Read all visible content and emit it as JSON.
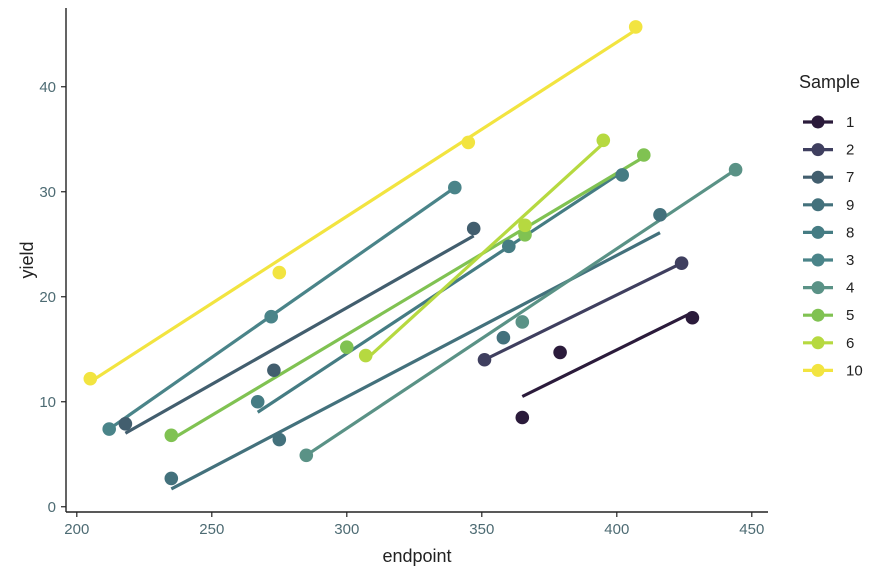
{
  "chart_data": {
    "type": "scatter",
    "xlabel": "endpoint",
    "ylabel": "yield",
    "xlim": [
      196,
      456
    ],
    "ylim": [
      -0.5,
      47.5
    ],
    "x_ticks": [
      200,
      250,
      300,
      350,
      400,
      450
    ],
    "y_ticks": [
      0,
      10,
      20,
      30,
      40
    ],
    "grid": false,
    "legend": {
      "title": "Sample",
      "position": "right"
    },
    "series": [
      {
        "name": "1",
        "color": "#2b1b3b",
        "points": [
          [
            365,
            8.5
          ],
          [
            379,
            14.7
          ],
          [
            428,
            18.0
          ]
        ],
        "fit": [
          [
            365,
            10.5
          ],
          [
            428,
            18.5
          ]
        ]
      },
      {
        "name": "2",
        "color": "#3f3f5f",
        "points": [
          [
            351,
            14.0
          ],
          [
            424,
            23.2
          ]
        ],
        "fit": [
          [
            351,
            14.0
          ],
          [
            424,
            23.2
          ]
        ]
      },
      {
        "name": "7",
        "color": "#425e6e",
        "points": [
          [
            218,
            7.9
          ],
          [
            273,
            13.0
          ],
          [
            347,
            26.5
          ]
        ],
        "fit": [
          [
            218,
            7.0
          ],
          [
            347,
            25.8
          ]
        ]
      },
      {
        "name": "9",
        "color": "#43717c",
        "points": [
          [
            235,
            2.7
          ],
          [
            275,
            6.4
          ],
          [
            358,
            16.1
          ],
          [
            416,
            27.8
          ]
        ],
        "fit": [
          [
            235,
            1.7
          ],
          [
            416,
            26.1
          ]
        ]
      },
      {
        "name": "8",
        "color": "#457c83",
        "points": [
          [
            267,
            10.0
          ],
          [
            360,
            24.8
          ],
          [
            402,
            31.6
          ]
        ],
        "fit": [
          [
            267,
            9.0
          ],
          [
            402,
            31.9
          ]
        ]
      },
      {
        "name": "3",
        "color": "#4a8489",
        "points": [
          [
            212,
            7.4
          ],
          [
            272,
            18.1
          ],
          [
            340,
            30.4
          ]
        ],
        "fit": [
          [
            212,
            7.4
          ],
          [
            340,
            30.4
          ]
        ]
      },
      {
        "name": "4",
        "color": "#5a9286",
        "points": [
          [
            285,
            4.9
          ],
          [
            365,
            17.6
          ],
          [
            444,
            32.1
          ]
        ],
        "fit": [
          [
            285,
            4.9
          ],
          [
            444,
            32.1
          ]
        ]
      },
      {
        "name": "5",
        "color": "#80c252",
        "points": [
          [
            235,
            6.8
          ],
          [
            300,
            15.2
          ],
          [
            366,
            25.9
          ],
          [
            410,
            33.5
          ]
        ],
        "fit": [
          [
            235,
            6.4
          ],
          [
            410,
            33.3
          ]
        ]
      },
      {
        "name": "6",
        "color": "#b6d940",
        "points": [
          [
            307,
            14.4
          ],
          [
            366,
            26.8
          ],
          [
            395,
            34.9
          ]
        ],
        "fit": [
          [
            307,
            14.0
          ],
          [
            395,
            34.6
          ]
        ]
      },
      {
        "name": "10",
        "color": "#f2e440",
        "points": [
          [
            205,
            12.2
          ],
          [
            275,
            22.3
          ],
          [
            345,
            34.7
          ],
          [
            407,
            45.7
          ]
        ],
        "fit": [
          [
            205,
            11.9
          ],
          [
            407,
            45.4
          ]
        ]
      }
    ]
  }
}
